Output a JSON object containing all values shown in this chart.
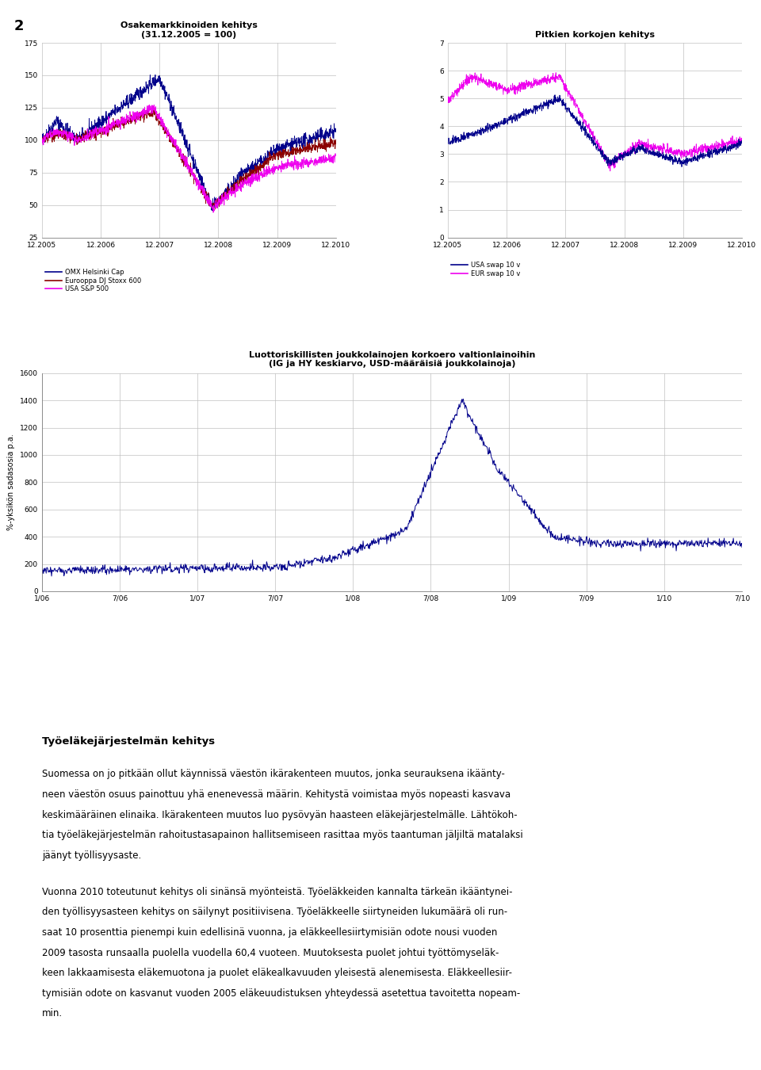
{
  "page_number": "2",
  "chart1_title": "Osakemarkkinoiden kehitys\n(31.12.2005 = 100)",
  "chart1_ylim": [
    25,
    175
  ],
  "chart1_yticks": [
    25,
    50,
    75,
    100,
    125,
    150,
    175
  ],
  "chart1_xlabels": [
    "12.2005",
    "12.2006",
    "12.2007",
    "12.2008",
    "12.2009",
    "12.2010"
  ],
  "chart1_legend": [
    "OMX Helsinki Cap",
    "Eurooppa DJ Stoxx 600",
    "USA S&P 500"
  ],
  "chart1_colors": [
    "#00008B",
    "#8B0000",
    "#EE00EE"
  ],
  "chart2_title": "Pitkien korkojen kehitys",
  "chart2_ylim": [
    0,
    7
  ],
  "chart2_yticks": [
    0,
    1,
    2,
    3,
    4,
    5,
    6,
    7
  ],
  "chart2_xlabels": [
    "12.2005",
    "12.2006",
    "12.2007",
    "12.2008",
    "12.2009",
    "12.2010"
  ],
  "chart2_legend": [
    "USA swap 10 v",
    "EUR swap 10 v"
  ],
  "chart2_colors": [
    "#00008B",
    "#EE00EE"
  ],
  "chart3_title": "Luottoriskillisten joukkolainojen korkoero valtionlainoihin\n(IG ja HY keskiarvo, USD-määräisiä joukkolainoja)",
  "chart3_ylabel": "%-yksikön sadasosia p.a.",
  "chart3_ylim": [
    0,
    1600
  ],
  "chart3_yticks": [
    0,
    200,
    400,
    600,
    800,
    1000,
    1200,
    1400,
    1600
  ],
  "chart3_xlabels": [
    "1/06",
    "7/06",
    "1/07",
    "7/07",
    "1/08",
    "7/08",
    "1/09",
    "7/09",
    "1/10",
    "7/10"
  ],
  "chart3_color": "#00008B",
  "body_title": "Työeläkejärjestelmän kehitys",
  "body_para1": [
    "Suomessa on jo pitkään ollut käynnissä väestön ikärakenteen muutos, jonka seurauksena ikäänty-",
    "neen väestön osuus painottuu yhä enenevessä määrin. Kehitystä voimistaa myös nopeasti kasvava",
    "keskimääräinen elinaika. Ikärakenteen muutos luo pysövyän haasteen eläkejärjestelmälle. Lähtökoh-",
    "tia työeläkejärjestelmän rahoitustasapainon hallitsemiseen rasittaa myös taantuman jäljiltä matalaksi",
    "jäänyt työllisyysaste."
  ],
  "body_para2": [
    "Vuonna 2010 toteutunut kehitys oli sinänsä myönteistä. Työeläkkeiden kannalta tärkeän ikääntynei-",
    "den työllisyysasteen kehitys on säilynyt positiivisena. Työeläkkeelle siirtyneiden lukumäärä oli run-",
    "saat 10 prosenttia pienempi kuin edellisinä vuonna, ja eläkkeellesiirtymisiän odote nousi vuoden",
    "2009 tasosta runsaalla puolella vuodella 60,4 vuoteen. Muutoksesta puolet johtui työttömyseläk-",
    "keen lakkaamisesta eläkemuotona ja puolet eläkealkavuuden yleisestä alenemisesta. Eläkkeellesiir-",
    "tymisiän odote on kasvanut vuoden 2005 eläkeuudistuksen yhteydessä asetettua tavoitetta nopeam-",
    "min."
  ],
  "bg_color": "#FFFFFF",
  "grid_color": "#C0C0C0",
  "border_color": "#808080"
}
